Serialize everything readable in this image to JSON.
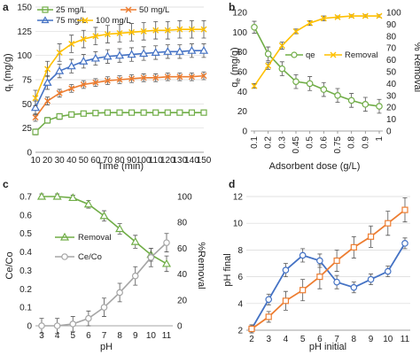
{
  "chart_data": [
    {
      "panel": "a",
      "type": "line",
      "xlabel": "Time (min)",
      "ylabel": "q_t (mg/g)",
      "x": [
        10,
        20,
        30,
        40,
        50,
        60,
        70,
        80,
        90,
        100,
        110,
        120,
        130,
        140,
        150
      ],
      "xlim": [
        10,
        150
      ],
      "ylim": [
        0,
        150
      ],
      "yticks": [
        0,
        25,
        50,
        75,
        100,
        125,
        150
      ],
      "grid": true,
      "legend": "top-left, two columns",
      "series": [
        {
          "name": "25 mg/L",
          "color": "#70ad47",
          "marker": "square",
          "values": [
            21,
            33,
            37,
            39,
            40,
            40.5,
            41,
            41,
            41,
            41,
            41,
            41,
            41,
            41,
            41
          ],
          "err": [
            3,
            3,
            3,
            2,
            2,
            2,
            2,
            2,
            2,
            2,
            2,
            2,
            2,
            2,
            2
          ]
        },
        {
          "name": "50 mg/L",
          "color": "#ed7d31",
          "marker": "x",
          "values": [
            36,
            53,
            61,
            66,
            70,
            72,
            74,
            75,
            76,
            77,
            77,
            78,
            78,
            78,
            79
          ],
          "err": [
            4,
            4,
            4,
            4,
            4,
            4,
            4,
            4,
            4,
            4,
            4,
            4,
            4,
            4,
            4
          ]
        },
        {
          "name": "75 mg/L",
          "color": "#4472c4",
          "marker": "triangle",
          "values": [
            46,
            72,
            84,
            89,
            94,
            97,
            99,
            100,
            101,
            102,
            103,
            104,
            104,
            105,
            105
          ],
          "err": [
            7,
            7,
            7,
            7,
            7,
            7,
            7,
            7,
            7,
            7,
            7,
            7,
            7,
            7,
            7
          ]
        },
        {
          "name": "100 mg/L",
          "color": "#ffc000",
          "marker": "x",
          "values": [
            56,
            86,
            103,
            112,
            117,
            120,
            122,
            123,
            124,
            125,
            126,
            126,
            127,
            127,
            127
          ],
          "err": [
            8,
            8,
            9,
            9,
            9,
            9,
            9,
            9,
            9,
            9,
            9,
            9,
            9,
            9,
            9
          ]
        }
      ]
    },
    {
      "panel": "b",
      "type": "line",
      "xlabel": "Adsorbent dose (g/L)",
      "ylabel_left": "q_e (mg/g)",
      "ylabel_right": "% Removal",
      "categories": [
        "0.1",
        "0.2",
        "0.3",
        "0.45",
        "0.5",
        "0.6",
        "0.75",
        "0.8",
        "0.9",
        "1"
      ],
      "ylim_left": [
        0,
        120
      ],
      "yticks_left": [
        0,
        20,
        40,
        60,
        80,
        100,
        120
      ],
      "ylim_right": [
        0,
        100
      ],
      "yticks_right": [
        0,
        10,
        20,
        30,
        40,
        50,
        60,
        70,
        80,
        90,
        100
      ],
      "legend": "inside, center-right",
      "series": [
        {
          "name": "qe",
          "color": "#70ad47",
          "marker": "circle",
          "axis": "left",
          "values": [
            105,
            78,
            63,
            50,
            48,
            42,
            36,
            31,
            27,
            25
          ],
          "err": [
            6,
            7,
            7,
            7,
            7,
            7,
            7,
            7,
            7,
            7
          ]
        },
        {
          "name": "Removal",
          "color": "#ffc000",
          "marker": "x",
          "axis": "right",
          "values": [
            38,
            55,
            72,
            84,
            91,
            95,
            96,
            97,
            97,
            97
          ],
          "err": [
            2,
            3,
            3,
            2,
            2,
            2,
            1,
            1,
            1,
            1
          ]
        }
      ]
    },
    {
      "panel": "c",
      "type": "line",
      "xlabel": "pH",
      "ylabel_left": "Ce/Co",
      "ylabel_right": "%Removal",
      "categories": [
        "3",
        "4",
        "5",
        "6",
        "7",
        "8",
        "9",
        "10",
        "11"
      ],
      "ylim_left": [
        0,
        0.7
      ],
      "yticks_left": [
        0,
        0.1,
        0.2,
        0.3,
        0.4,
        0.5,
        0.6,
        0.7
      ],
      "ylim_right": [
        0,
        100
      ],
      "yticks_right": [
        0,
        20,
        40,
        60,
        80,
        100
      ],
      "legend": "inside, center-left",
      "series": [
        {
          "name": "Removal",
          "color": "#70ad47",
          "marker": "triangle",
          "axis": "right",
          "values": [
            100,
            100,
            99,
            94,
            85,
            75,
            65,
            55,
            48
          ],
          "err": [
            2,
            2,
            2,
            3,
            4,
            4,
            5,
            5,
            6
          ]
        },
        {
          "name": "Ce/Co",
          "color": "#a5a5a5",
          "marker": "circle",
          "axis": "left",
          "values": [
            0,
            0,
            0.01,
            0.04,
            0.1,
            0.18,
            0.27,
            0.37,
            0.45
          ],
          "err": [
            0.04,
            0.04,
            0.04,
            0.04,
            0.05,
            0.05,
            0.05,
            0.05,
            0.05
          ]
        }
      ]
    },
    {
      "panel": "d",
      "type": "line",
      "xlabel": "pH initial",
      "ylabel": "pH final",
      "categories": [
        "2",
        "3",
        "4",
        "5",
        "6",
        "7",
        "8",
        "9",
        "10",
        "11"
      ],
      "ylim": [
        2,
        12
      ],
      "yticks": [
        2,
        4,
        6,
        8,
        10,
        12
      ],
      "series": [
        {
          "color": "#4472c4",
          "marker": "circle",
          "values": [
            2.1,
            4.3,
            6.5,
            7.6,
            7.2,
            5.6,
            5.2,
            5.8,
            6.4,
            8.5
          ],
          "err": [
            0.3,
            0.4,
            0.5,
            0.5,
            0.5,
            0.5,
            0.4,
            0.4,
            0.4,
            0.4
          ]
        },
        {
          "color": "#ed7d31",
          "marker": "square",
          "values": [
            2.1,
            3.0,
            4.2,
            5.0,
            6.0,
            7.2,
            8.2,
            9.0,
            10.0,
            11.0
          ],
          "err": [
            0.3,
            0.4,
            0.7,
            0.8,
            0.9,
            0.8,
            0.8,
            0.8,
            0.9,
            0.9
          ]
        }
      ]
    }
  ],
  "panels": {
    "a": {
      "label": "a",
      "xlabel": "Time (min)",
      "ylabel_main": "q",
      "ylabel_sub": "t",
      "ylabel_rest": " (mg/g)",
      "legend": [
        "25 mg/L",
        "50 mg/L",
        "75 mg/L",
        "100 mg/L"
      ]
    },
    "b": {
      "label": "b",
      "xlabel": "Adsorbent dose (g/L)",
      "ylabel_main": "q",
      "ylabel_sub": "e",
      "ylabel_rest": " (mg/g)",
      "ylabel_right": "% Removal",
      "legend": [
        "qe",
        "Removal"
      ]
    },
    "c": {
      "label": "c",
      "xlabel": "pH",
      "ylabel_left": "Ce/Co",
      "ylabel_right": "%Removal",
      "legend": [
        "Removal",
        "Ce/Co"
      ]
    },
    "d": {
      "label": "d",
      "xlabel": "pH initial",
      "ylabel": "pH final"
    }
  }
}
